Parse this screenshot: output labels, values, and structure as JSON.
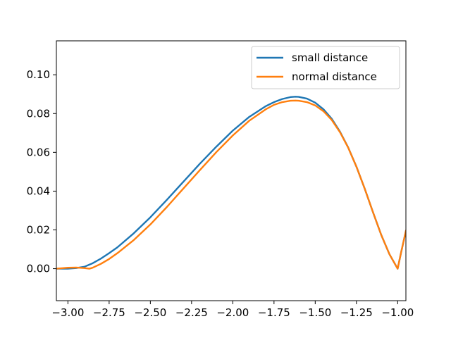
{
  "chart_data": {
    "type": "line",
    "title": "",
    "xlabel": "",
    "ylabel": "",
    "xlim": [
      -3.07,
      -0.95
    ],
    "ylim": [
      -0.0165,
      0.1175
    ],
    "grid": false,
    "legend_placement": "top-right",
    "x_ticks": [
      {
        "value": -3.0,
        "label": "−3.00"
      },
      {
        "value": -2.75,
        "label": "−2.75"
      },
      {
        "value": -2.5,
        "label": "−2.50"
      },
      {
        "value": -2.25,
        "label": "−2.25"
      },
      {
        "value": -2.0,
        "label": "−2.00"
      },
      {
        "value": -1.75,
        "label": "−1.75"
      },
      {
        "value": -1.5,
        "label": "−1.50"
      },
      {
        "value": -1.25,
        "label": "−1.25"
      },
      {
        "value": -1.0,
        "label": "−1.00"
      }
    ],
    "y_ticks": [
      {
        "value": 0.0,
        "label": "0.00"
      },
      {
        "value": 0.02,
        "label": "0.02"
      },
      {
        "value": 0.04,
        "label": "0.04"
      },
      {
        "value": 0.06,
        "label": "0.06"
      },
      {
        "value": 0.08,
        "label": "0.08"
      },
      {
        "value": 0.1,
        "label": "0.10"
      }
    ],
    "series": [
      {
        "name": "small distance",
        "color": "#1f77b4",
        "x": [
          -3.07,
          -3.0,
          -2.95,
          -2.9,
          -2.85,
          -2.8,
          -2.75,
          -2.7,
          -2.6,
          -2.5,
          -2.4,
          -2.3,
          -2.2,
          -2.1,
          -2.0,
          -1.9,
          -1.8,
          -1.75,
          -1.7,
          -1.65,
          -1.62,
          -1.6,
          -1.55,
          -1.5,
          -1.45,
          -1.4,
          -1.35,
          -1.3,
          -1.25,
          -1.2,
          -1.15,
          -1.1,
          -1.05,
          -1.0,
          -0.98,
          -0.95
        ],
        "y": [
          0.0,
          0.0,
          0.0003,
          0.001,
          0.0028,
          0.0052,
          0.008,
          0.011,
          0.0183,
          0.0265,
          0.0355,
          0.0448,
          0.0541,
          0.0629,
          0.0712,
          0.0783,
          0.0838,
          0.0859,
          0.0875,
          0.0885,
          0.0887,
          0.0886,
          0.0877,
          0.0856,
          0.0822,
          0.0773,
          0.0707,
          0.0625,
          0.0526,
          0.0413,
          0.0292,
          0.0175,
          0.0075,
          0.0,
          0.008,
          0.0195
        ]
      },
      {
        "name": "normal distance",
        "color": "#ff7f0e",
        "x": [
          -3.07,
          -3.0,
          -2.95,
          -2.9,
          -2.87,
          -2.85,
          -2.8,
          -2.75,
          -2.7,
          -2.6,
          -2.5,
          -2.4,
          -2.3,
          -2.2,
          -2.1,
          -2.0,
          -1.9,
          -1.8,
          -1.75,
          -1.7,
          -1.65,
          -1.62,
          -1.6,
          -1.55,
          -1.5,
          -1.45,
          -1.4,
          -1.35,
          -1.3,
          -1.25,
          -1.2,
          -1.15,
          -1.1,
          -1.05,
          -1.0,
          -0.98,
          -0.95
        ],
        "y": [
          0.0,
          0.0005,
          0.0006,
          0.0003,
          0.0,
          0.0005,
          0.0025,
          0.005,
          0.008,
          0.0148,
          0.0228,
          0.0318,
          0.0413,
          0.0508,
          0.0601,
          0.0687,
          0.0763,
          0.0822,
          0.0845,
          0.0859,
          0.0866,
          0.0867,
          0.0866,
          0.0859,
          0.0842,
          0.0812,
          0.0767,
          0.0704,
          0.0624,
          0.0526,
          0.0413,
          0.0292,
          0.0175,
          0.0075,
          0.0,
          0.008,
          0.0195
        ]
      }
    ]
  }
}
